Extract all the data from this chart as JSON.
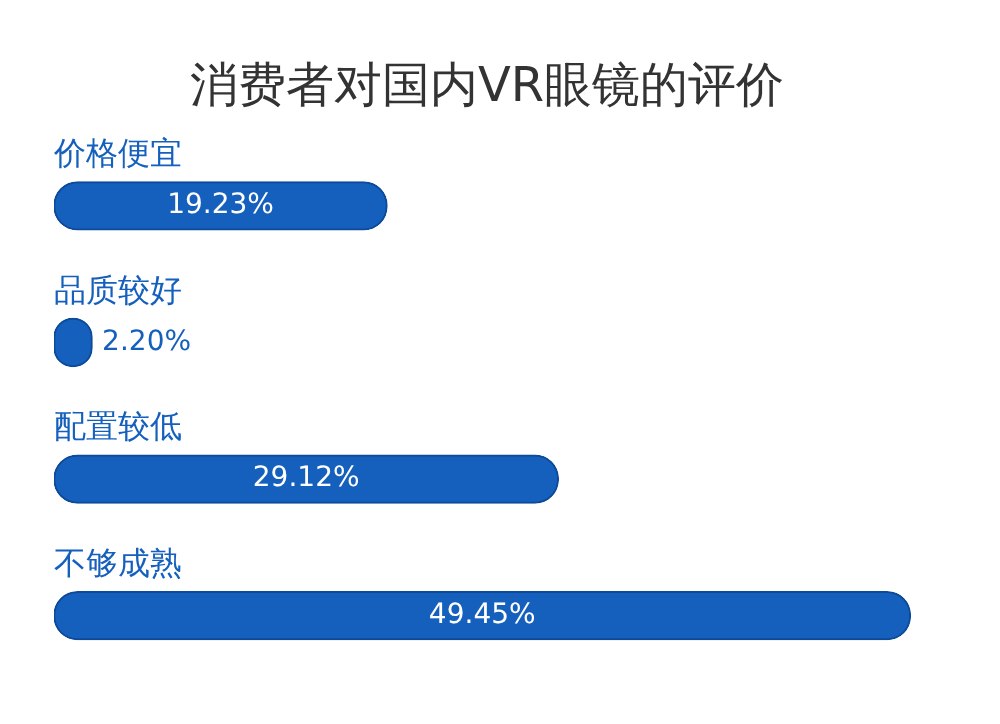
{
  "chart_data": {
    "type": "bar",
    "orientation": "horizontal",
    "title": "消费者对国内VR眼镜的评价",
    "categories": [
      "价格便宜",
      "品质较好",
      "配置较低",
      "不够成熟"
    ],
    "values": [
      19.23,
      2.2,
      29.12,
      49.45
    ],
    "value_labels": [
      "19.23%",
      "2.20%",
      "29.12%",
      "49.45%"
    ],
    "color": "#1560bd",
    "xlim": [
      0,
      50
    ],
    "tick_labels": false
  }
}
